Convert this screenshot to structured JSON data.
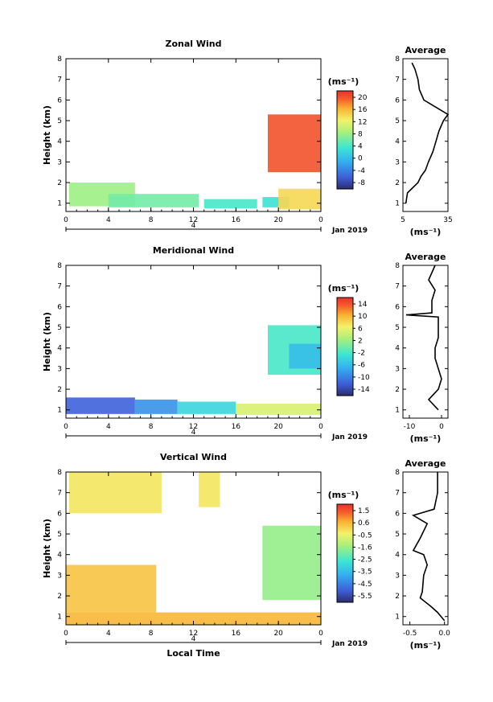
{
  "chart_data": [
    {
      "type": "heatmap",
      "title": "Zonal Wind",
      "ylabel": "Height (km)",
      "xlabel": "",
      "x_ticks": [
        "0",
        "4",
        "8",
        "12",
        "16",
        "20",
        "0"
      ],
      "y_ticks": [
        "1",
        "2",
        "3",
        "4",
        "5",
        "6",
        "7",
        "8"
      ],
      "xlim": [
        0,
        24
      ],
      "ylim": [
        0.6,
        8.0
      ],
      "date_label": "Jan 2019",
      "day_label": "4",
      "colorbar": {
        "unit": "(ms⁻¹)",
        "ticks": [
          "20",
          "16",
          "12",
          "8",
          "4",
          "0",
          "-4",
          "-8"
        ],
        "range": [
          -10,
          22
        ]
      },
      "regions": [
        {
          "value": 8,
          "x": [
            0.3,
            6.5
          ],
          "y": [
            0.85,
            2.0
          ]
        },
        {
          "value": 6,
          "x": [
            4.0,
            12.5
          ],
          "y": [
            0.8,
            1.45
          ]
        },
        {
          "value": 4,
          "x": [
            13.0,
            18.0
          ],
          "y": [
            0.75,
            1.2
          ]
        },
        {
          "value": 3,
          "x": [
            18.5,
            21.0
          ],
          "y": [
            0.8,
            1.3
          ]
        },
        {
          "value": 14,
          "x": [
            20.0,
            24.0
          ],
          "y": [
            0.7,
            1.7
          ]
        },
        {
          "value": 20,
          "x": [
            19.0,
            24.0
          ],
          "y": [
            2.5,
            5.3
          ]
        }
      ],
      "average": {
        "title": "Average",
        "xlabel": "(ms⁻¹)",
        "x_ticks": [
          "5",
          "35"
        ],
        "xlim": [
          5,
          35
        ],
        "profile": [
          [
            1.0,
            7
          ],
          [
            1.5,
            8
          ],
          [
            2.0,
            15
          ],
          [
            2.3,
            17
          ],
          [
            2.6,
            20
          ],
          [
            3.0,
            22
          ],
          [
            3.5,
            25
          ],
          [
            4.0,
            27
          ],
          [
            4.5,
            29
          ],
          [
            5.0,
            32
          ],
          [
            5.3,
            35
          ],
          [
            6.0,
            19
          ],
          [
            6.5,
            16
          ],
          [
            7.0,
            15
          ],
          [
            7.5,
            13
          ],
          [
            7.8,
            11
          ]
        ]
      }
    },
    {
      "type": "heatmap",
      "title": "Meridional Wind",
      "ylabel": "Height (km)",
      "xlabel": "",
      "x_ticks": [
        "0",
        "4",
        "8",
        "12",
        "16",
        "20",
        "0"
      ],
      "y_ticks": [
        "1",
        "2",
        "3",
        "4",
        "5",
        "6",
        "7",
        "8"
      ],
      "xlim": [
        0,
        24
      ],
      "ylim": [
        0.6,
        8.0
      ],
      "date_label": "Jan 2019",
      "day_label": "4",
      "colorbar": {
        "unit": "(ms⁻¹)",
        "ticks": [
          "14",
          "10",
          "6",
          "2",
          "-2",
          "-6",
          "-10",
          "-14"
        ],
        "range": [
          -16,
          16
        ]
      },
      "regions": [
        {
          "value": -12,
          "x": [
            0.0,
            6.5
          ],
          "y": [
            0.8,
            1.6
          ]
        },
        {
          "value": -9,
          "x": [
            6.5,
            10.5
          ],
          "y": [
            0.8,
            1.5
          ]
        },
        {
          "value": -4,
          "x": [
            10.5,
            16.0
          ],
          "y": [
            0.8,
            1.4
          ]
        },
        {
          "value": 5,
          "x": [
            16.0,
            24.0
          ],
          "y": [
            0.75,
            1.3
          ]
        },
        {
          "value": -2,
          "x": [
            19.0,
            24.0
          ],
          "y": [
            2.7,
            5.1
          ]
        },
        {
          "value": -6,
          "x": [
            21.0,
            24.0
          ],
          "y": [
            3.0,
            4.2
          ]
        }
      ],
      "average": {
        "title": "Average",
        "xlabel": "(ms⁻¹)",
        "x_ticks": [
          "-10",
          "0"
        ],
        "xlim": [
          -12,
          2
        ],
        "profile": [
          [
            1.0,
            -1
          ],
          [
            1.5,
            -4
          ],
          [
            2.0,
            -1
          ],
          [
            2.5,
            0
          ],
          [
            3.0,
            -1
          ],
          [
            3.5,
            -2
          ],
          [
            4.0,
            -2
          ],
          [
            4.5,
            -1
          ],
          [
            5.0,
            -1
          ],
          [
            5.5,
            -1
          ],
          [
            5.6,
            -11
          ],
          [
            5.7,
            -3
          ],
          [
            6.3,
            -3
          ],
          [
            6.8,
            -2
          ],
          [
            7.3,
            -4
          ],
          [
            8.0,
            -2
          ]
        ]
      }
    },
    {
      "type": "heatmap",
      "title": "Vertical Wind",
      "ylabel": "Height (km)",
      "xlabel": "Local Time",
      "x_ticks": [
        "0",
        "4",
        "8",
        "12",
        "16",
        "20",
        "0"
      ],
      "y_ticks": [
        "1",
        "2",
        "3",
        "4",
        "5",
        "6",
        "7",
        "8"
      ],
      "xlim": [
        0,
        24
      ],
      "ylim": [
        0.6,
        8.0
      ],
      "date_label": "Jan 2019",
      "day_label": "4",
      "colorbar": {
        "unit": "(ms⁻¹)",
        "ticks": [
          "1.5",
          "0.6",
          "-0.5",
          "-1.6",
          "-2.5",
          "-3.5",
          "-4.5",
          "-5.5"
        ],
        "range": [
          -6,
          2
        ]
      },
      "regions": [
        {
          "value": 0.5,
          "x": [
            0.0,
            24.0
          ],
          "y": [
            0.6,
            1.2
          ]
        },
        {
          "value": 0.3,
          "x": [
            0.0,
            8.5
          ],
          "y": [
            1.2,
            3.5
          ]
        },
        {
          "value": -0.2,
          "x": [
            0.3,
            9.0
          ],
          "y": [
            6.0,
            8.0
          ]
        },
        {
          "value": -0.2,
          "x": [
            12.5,
            14.5
          ],
          "y": [
            6.3,
            8.0
          ]
        },
        {
          "value": -1.6,
          "x": [
            18.5,
            24.0
          ],
          "y": [
            1.8,
            5.4
          ]
        }
      ],
      "average": {
        "title": "Average",
        "xlabel": "(ms⁻¹)",
        "x_ticks": [
          "-0.5",
          "0.0"
        ],
        "xlim": [
          -0.6,
          0.05
        ],
        "profile": [
          [
            0.8,
            0.0
          ],
          [
            1.2,
            -0.1
          ],
          [
            1.5,
            -0.2
          ],
          [
            1.9,
            -0.35
          ],
          [
            2.2,
            -0.32
          ],
          [
            3.0,
            -0.3
          ],
          [
            3.5,
            -0.25
          ],
          [
            4.0,
            -0.3
          ],
          [
            4.2,
            -0.45
          ],
          [
            4.8,
            -0.35
          ],
          [
            5.5,
            -0.25
          ],
          [
            5.9,
            -0.45
          ],
          [
            6.2,
            -0.15
          ],
          [
            7.0,
            -0.1
          ],
          [
            8.0,
            -0.1
          ]
        ]
      }
    }
  ]
}
